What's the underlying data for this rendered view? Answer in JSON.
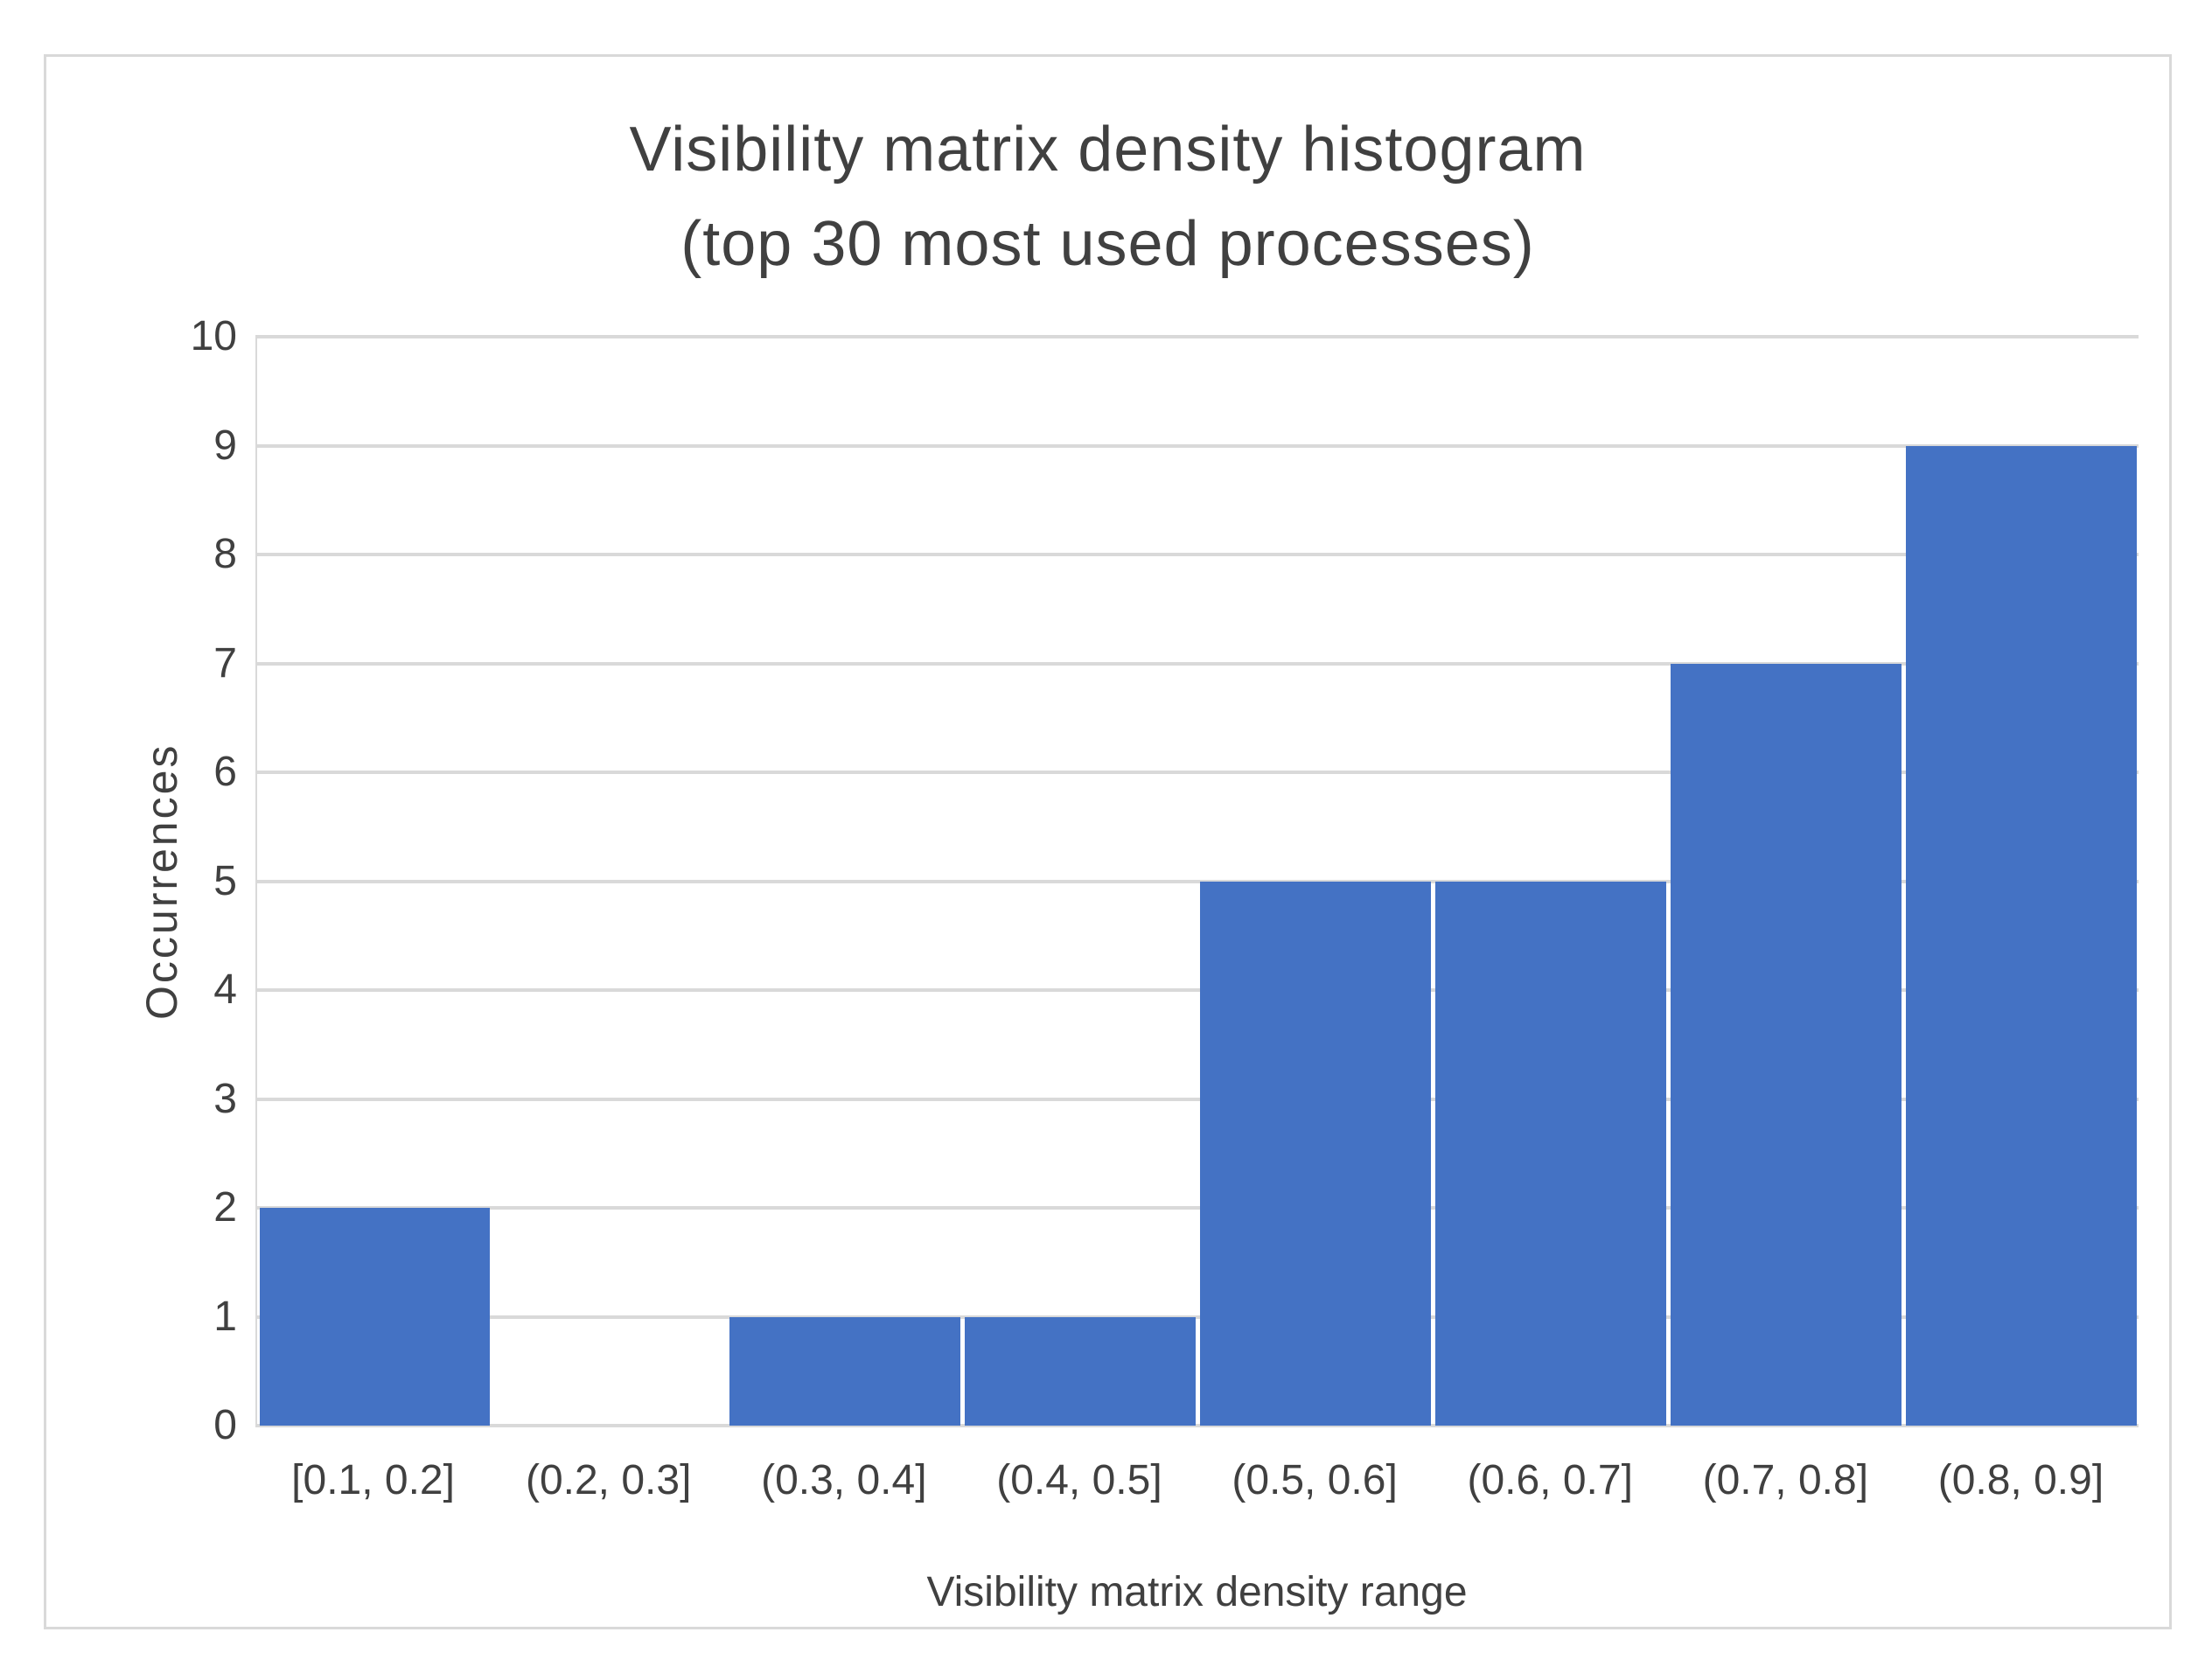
{
  "chart_data": {
    "type": "bar",
    "title": "Visibility matrix density histogram",
    "subtitle": "(top 30 most used processes)",
    "categories": [
      "[0.1, 0.2]",
      "(0.2, 0.3]",
      "(0.3, 0.4]",
      "(0.4, 0.5]",
      "(0.5, 0.6]",
      "(0.6, 0.7]",
      "(0.7, 0.8]",
      "(0.8, 0.9]"
    ],
    "values": [
      2,
      0,
      1,
      1,
      5,
      5,
      7,
      9
    ],
    "xlabel": "Visibility matrix density range",
    "ylabel": "Occurrences",
    "ylim": [
      0,
      10
    ],
    "ytick_step": 1,
    "yticks": [
      0,
      1,
      2,
      3,
      4,
      5,
      6,
      7,
      8,
      9,
      10
    ],
    "grid": true,
    "legend_position": "none",
    "colors": {
      "bar": "#4472c4",
      "gridline": "#d9d9d9",
      "axis_text": "#404040",
      "title_text": "#404040",
      "frame_border": "#d9d9d9",
      "background": "#ffffff"
    }
  }
}
